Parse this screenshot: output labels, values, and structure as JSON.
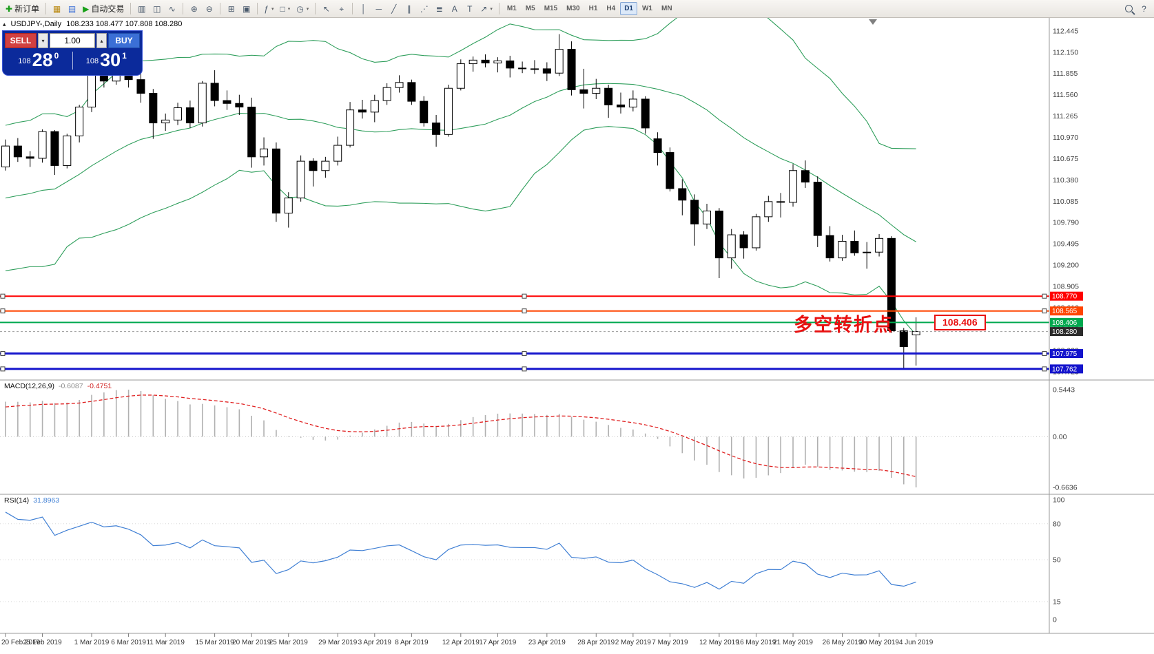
{
  "toolbar": {
    "caret_glyph": "▾",
    "items": [
      {
        "type": "btn",
        "name": "new-order-button",
        "glyph": "✚",
        "label": "新订单",
        "color": "#1a9c1a"
      },
      {
        "type": "sep"
      },
      {
        "type": "btn",
        "name": "new-chart-button",
        "glyph": "▦",
        "color": "#b8860b"
      },
      {
        "type": "btn",
        "name": "profiles-button",
        "glyph": "▤",
        "color": "#3b6fd6"
      },
      {
        "type": "btn",
        "name": "autotrading-button",
        "glyph": "▶",
        "label": "自动交易",
        "color": "#18a018"
      },
      {
        "type": "sep"
      },
      {
        "type": "btn",
        "name": "bar-chart-button",
        "glyph": "▥"
      },
      {
        "type": "btn",
        "name": "candlestick-chart-button",
        "glyph": "◫"
      },
      {
        "type": "btn",
        "name": "line-chart-button",
        "glyph": "∿"
      },
      {
        "type": "sep"
      },
      {
        "type": "btn",
        "name": "zoom-in-button",
        "glyph": "⊕"
      },
      {
        "type": "btn",
        "name": "zoom-out-button",
        "glyph": "⊖"
      },
      {
        "type": "sep"
      },
      {
        "type": "btn",
        "name": "tile-windows-button",
        "glyph": "⊞"
      },
      {
        "type": "btn",
        "name": "auto-arrange-button",
        "glyph": "▣"
      },
      {
        "type": "sep"
      },
      {
        "type": "btn",
        "name": "indicators-button",
        "glyph": "ƒ",
        "caret": true
      },
      {
        "type": "btn",
        "name": "objects-button",
        "glyph": "□",
        "caret": true
      },
      {
        "type": "btn",
        "name": "period-button",
        "glyph": "◷",
        "caret": true
      },
      {
        "type": "sep"
      },
      {
        "type": "btn",
        "name": "cursor-button",
        "glyph": "↖"
      },
      {
        "type": "btn",
        "name": "crosshair-button",
        "glyph": "⌖"
      },
      {
        "type": "sep"
      },
      {
        "type": "btn",
        "name": "vertical-line-button",
        "glyph": "│"
      },
      {
        "type": "btn",
        "name": "horizontal-line-button",
        "glyph": "─"
      },
      {
        "type": "btn",
        "name": "trendline-button",
        "glyph": "╱"
      },
      {
        "type": "btn",
        "name": "channel-button",
        "glyph": "∥"
      },
      {
        "type": "btn",
        "name": "fibonacci-button",
        "glyph": "⋰"
      },
      {
        "type": "btn",
        "name": "levels-button",
        "glyph": "≣"
      },
      {
        "type": "btn",
        "name": "text-button",
        "glyph": "A"
      },
      {
        "type": "btn",
        "name": "label-button",
        "glyph": "T"
      },
      {
        "type": "btn",
        "name": "arrows-button",
        "glyph": "↗",
        "caret": true
      },
      {
        "type": "sep"
      },
      {
        "type": "tf",
        "label": "M1"
      },
      {
        "type": "tf",
        "label": "M5"
      },
      {
        "type": "tf",
        "label": "M15"
      },
      {
        "type": "tf",
        "label": "M30"
      },
      {
        "type": "tf",
        "label": "H1"
      },
      {
        "type": "tf",
        "label": "H4"
      },
      {
        "type": "tf",
        "label": "D1",
        "active": true
      },
      {
        "type": "tf",
        "label": "W1"
      },
      {
        "type": "tf",
        "label": "MN"
      },
      {
        "type": "space"
      },
      {
        "type": "btn",
        "name": "search-button",
        "glyph": "@mag"
      },
      {
        "type": "btn",
        "name": "help-button",
        "glyph": "?"
      }
    ]
  },
  "chart": {
    "collapse_glyph": "▴",
    "title": "USDJPY-,Daily",
    "ohlc": "108.233 108.477 107.808 108.280",
    "annotation_text": "多空转折点",
    "price_tag": "108.406"
  },
  "trade_panel": {
    "sell_label": "SELL",
    "buy_label": "BUY",
    "volume": "1.00",
    "step_down_glyph": "▾",
    "step_up_glyph": "▴",
    "sell_price": {
      "prefix": "108",
      "big": "28",
      "sup": "0"
    },
    "buy_price": {
      "prefix": "108",
      "big": "30",
      "sup": "1"
    }
  },
  "chart_data": {
    "type": "candlestick",
    "symbol": "USDJPY",
    "period": "Daily",
    "colors": {
      "bollinger": "#2E9E5B",
      "candle_up": "#ffffff",
      "candle_down": "#000000",
      "macd_hist": "#b0b0b0",
      "macd_signal": "#e02020",
      "rsi_line": "#3F7FD4",
      "axis_text": "#3c3c3c"
    },
    "pre_closes": [
      108.95,
      109.35,
      109.55,
      109.72,
      109.85,
      109.98,
      110.1,
      110.35,
      110.48,
      110.45,
      110.52,
      110.38,
      110.46,
      110.58,
      110.5
    ],
    "candles": [
      [
        110.56,
        110.94,
        110.51,
        110.85
      ],
      [
        110.85,
        110.96,
        110.63,
        110.7
      ],
      [
        110.7,
        110.78,
        110.56,
        110.68
      ],
      [
        110.68,
        111.08,
        110.62,
        111.05
      ],
      [
        111.05,
        111.07,
        110.45,
        110.58
      ],
      [
        110.58,
        111.02,
        110.54,
        110.99
      ],
      [
        110.99,
        111.42,
        110.9,
        111.39
      ],
      [
        111.39,
        112.0,
        111.32,
        111.91
      ],
      [
        111.91,
        112.08,
        111.66,
        111.75
      ],
      [
        111.75,
        112.13,
        111.7,
        111.88
      ],
      [
        111.88,
        111.95,
        111.66,
        111.77
      ],
      [
        111.77,
        111.85,
        111.45,
        111.58
      ],
      [
        111.58,
        111.64,
        110.95,
        111.17
      ],
      [
        111.17,
        111.3,
        111.06,
        111.21
      ],
      [
        111.21,
        111.45,
        111.14,
        111.38
      ],
      [
        111.38,
        111.48,
        111.1,
        111.17
      ],
      [
        111.17,
        111.75,
        111.12,
        111.72
      ],
      [
        111.72,
        111.9,
        111.4,
        111.48
      ],
      [
        111.48,
        111.62,
        111.35,
        111.44
      ],
      [
        111.44,
        111.56,
        111.28,
        111.39
      ],
      [
        111.39,
        111.52,
        110.55,
        110.7
      ],
      [
        110.7,
        110.97,
        110.58,
        110.81
      ],
      [
        110.81,
        110.9,
        109.8,
        109.92
      ],
      [
        109.92,
        110.21,
        109.72,
        110.13
      ],
      [
        110.13,
        110.72,
        110.08,
        110.64
      ],
      [
        110.64,
        110.68,
        110.29,
        110.51
      ],
      [
        110.51,
        110.7,
        110.41,
        110.64
      ],
      [
        110.64,
        110.98,
        110.58,
        110.86
      ],
      [
        110.86,
        111.46,
        110.83,
        111.35
      ],
      [
        111.35,
        111.49,
        111.23,
        111.32
      ],
      [
        111.32,
        111.56,
        111.18,
        111.48
      ],
      [
        111.48,
        111.72,
        111.42,
        111.66
      ],
      [
        111.66,
        111.83,
        111.59,
        111.73
      ],
      [
        111.73,
        111.77,
        111.42,
        111.47
      ],
      [
        111.47,
        111.54,
        111.12,
        111.17
      ],
      [
        111.17,
        111.28,
        110.84,
        111.01
      ],
      [
        111.01,
        111.7,
        110.98,
        111.65
      ],
      [
        111.65,
        112.05,
        111.62,
        111.99
      ],
      [
        111.99,
        112.09,
        111.88,
        112.04
      ],
      [
        112.04,
        112.12,
        111.94,
        112.0
      ],
      [
        112.0,
        112.08,
        111.87,
        112.03
      ],
      [
        112.03,
        112.1,
        111.8,
        111.93
      ],
      [
        111.93,
        112.02,
        111.86,
        111.92
      ],
      [
        111.92,
        112.04,
        111.85,
        111.92
      ],
      [
        111.92,
        112.01,
        111.75,
        111.86
      ],
      [
        111.86,
        112.4,
        111.82,
        112.19
      ],
      [
        112.19,
        112.3,
        111.55,
        111.63
      ],
      [
        111.63,
        111.92,
        111.37,
        111.58
      ],
      [
        111.58,
        111.78,
        111.5,
        111.65
      ],
      [
        111.65,
        111.7,
        111.24,
        111.42
      ],
      [
        111.42,
        111.59,
        111.3,
        111.39
      ],
      [
        111.39,
        111.62,
        111.33,
        111.5
      ],
      [
        111.5,
        111.54,
        111.02,
        111.1
      ],
      [
        110.95,
        111.04,
        110.58,
        110.76
      ],
      [
        110.76,
        110.83,
        110.22,
        110.26
      ],
      [
        110.26,
        110.39,
        109.89,
        110.1
      ],
      [
        110.1,
        110.18,
        109.47,
        109.77
      ],
      [
        109.77,
        110.05,
        109.7,
        109.95
      ],
      [
        109.95,
        109.99,
        109.02,
        109.3
      ],
      [
        109.3,
        109.7,
        109.15,
        109.62
      ],
      [
        109.62,
        109.67,
        109.29,
        109.44
      ],
      [
        109.44,
        109.91,
        109.4,
        109.87
      ],
      [
        109.87,
        110.16,
        109.8,
        110.08
      ],
      [
        110.08,
        110.2,
        109.86,
        110.07
      ],
      [
        110.07,
        110.6,
        110.01,
        110.51
      ],
      [
        110.51,
        110.65,
        110.27,
        110.35
      ],
      [
        110.35,
        110.43,
        109.45,
        109.61
      ],
      [
        109.61,
        109.74,
        109.25,
        109.3
      ],
      [
        109.3,
        109.62,
        109.26,
        109.53
      ],
      [
        109.53,
        109.68,
        109.33,
        109.37
      ],
      [
        109.37,
        109.52,
        109.15,
        109.38
      ],
      [
        109.38,
        109.63,
        109.32,
        109.57
      ],
      [
        109.57,
        109.6,
        108.26,
        108.29
      ],
      [
        108.29,
        108.33,
        107.76,
        108.07
      ],
      [
        108.233,
        108.477,
        107.808,
        108.28
      ]
    ],
    "hlines": [
      {
        "price": 108.77,
        "label": "108.770",
        "color": "#ff0000",
        "width": 2,
        "handles": true
      },
      {
        "price": 108.565,
        "label": "108.565",
        "color": "#ff4500",
        "width": 2,
        "handles": true
      },
      {
        "price": 108.406,
        "label": "108.406",
        "color": "#00a84f",
        "width": 2,
        "handles": false
      },
      {
        "price": 107.975,
        "label": "107.975",
        "color": "#1414cc",
        "width": 3,
        "handles": true
      },
      {
        "price": 107.762,
        "label": "107.762",
        "color": "#1414cc",
        "width": 3,
        "handles": true
      }
    ],
    "current_price": {
      "price": 108.28,
      "label": "108.280"
    },
    "price_ticks": [
      "112.445",
      "112.150",
      "111.855",
      "111.560",
      "111.265",
      "110.970",
      "110.675",
      "110.380",
      "110.085",
      "109.790",
      "109.495",
      "109.200",
      "108.905",
      "108.610",
      "108.315",
      "108.020",
      "107.725"
    ],
    "date_labels": [
      {
        "text": "20 Feb 2019",
        "i": 0
      },
      {
        "text": "25 Feb 2019",
        "i": 3
      },
      {
        "text": "1 Mar 2019",
        "i": 7
      },
      {
        "text": "6 Mar 2019",
        "i": 10
      },
      {
        "text": "11 Mar 2019",
        "i": 13
      },
      {
        "text": "15 Mar 2019",
        "i": 17
      },
      {
        "text": "20 Mar 2019",
        "i": 20
      },
      {
        "text": "25 Mar 2019",
        "i": 23
      },
      {
        "text": "29 Mar 2019",
        "i": 27
      },
      {
        "text": "3 Apr 2019",
        "i": 30
      },
      {
        "text": "8 Apr 2019",
        "i": 33
      },
      {
        "text": "12 Apr 2019",
        "i": 37
      },
      {
        "text": "17 Apr 2019",
        "i": 40
      },
      {
        "text": "23 Apr 2019",
        "i": 44
      },
      {
        "text": "28 Apr 2019",
        "i": 48
      },
      {
        "text": "2 May 2019",
        "i": 51
      },
      {
        "text": "7 May 2019",
        "i": 54
      },
      {
        "text": "12 May 2019",
        "i": 58
      },
      {
        "text": "16 May 2019",
        "i": 61
      },
      {
        "text": "21 May 2019",
        "i": 64
      },
      {
        "text": "26 May 2019",
        "i": 68
      },
      {
        "text": "30 May 2019",
        "i": 71
      },
      {
        "text": "4 Jun 2019",
        "i": 74
      }
    ],
    "macd": {
      "label": "MACD(12,26,9)",
      "value": "-0.6087",
      "signal_value": "-0.4751",
      "axis_max": "0.5443",
      "axis_zero": "0.00",
      "axis_min": "-0.6636"
    },
    "rsi": {
      "label": "RSI(14)",
      "value": "31.8963",
      "levels": [
        "100",
        "80",
        "50",
        "15",
        "0"
      ]
    }
  }
}
